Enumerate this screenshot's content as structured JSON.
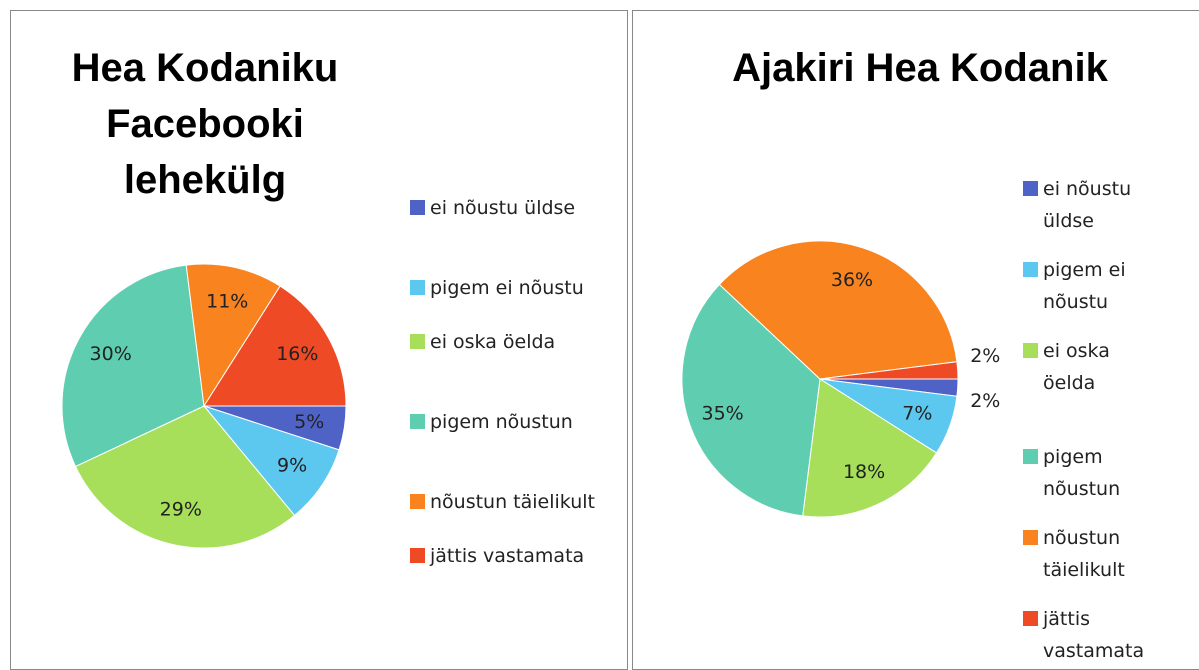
{
  "chart_data": [
    {
      "type": "pie",
      "title": "Hea Kodaniku Facebooki lehekülg",
      "categories": [
        "ei nõustu üldse",
        "pigem ei nõustu",
        "ei oska öelda",
        "pigem nõustun",
        "nõustun täielikult",
        "jättis vastamata"
      ],
      "values": [
        5,
        9,
        29,
        30,
        11,
        16
      ],
      "value_labels": [
        "5%",
        "9%",
        "29%",
        "30%",
        "11%",
        "16%"
      ],
      "colors": [
        "#4f62c6",
        "#5cc8f0",
        "#a7df5a",
        "#5fceb0",
        "#f8831f",
        "#ee4a26"
      ]
    },
    {
      "type": "pie",
      "title": "Ajakiri Hea Kodanik",
      "categories": [
        "ei nõustu üldse",
        "pigem ei nõustu",
        "ei oska öelda",
        "pigem nõustun",
        "nõustun täielikult",
        "jättis vastamata"
      ],
      "values": [
        2,
        7,
        18,
        35,
        36,
        2
      ],
      "value_labels": [
        "2%",
        "7%",
        "18%",
        "35%",
        "36%",
        "2%"
      ],
      "colors": [
        "#4f62c6",
        "#5cc8f0",
        "#a7df5a",
        "#5fceb0",
        "#f8831f",
        "#ee4a26"
      ]
    }
  ]
}
